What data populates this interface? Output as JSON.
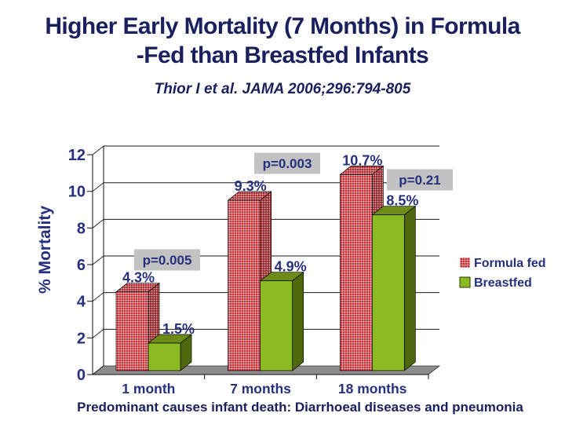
{
  "slide": {
    "title_line1": "Higher Early Mortality (7 Months) in Formula",
    "title_line2": "-Fed than Breastfed Infants",
    "subtitle": "Thior I et al.  JAMA 2006;296:794-805",
    "footer": "Predominant causes infant death: Diarrhoeal diseases and pneumonia"
  },
  "colors": {
    "navy_text": "#1a1f5e",
    "chart_text": "#27307e",
    "formula_red": "#c8232a",
    "breastfed_green": "#8cba22",
    "breastfed_green_top": "#6d8c17",
    "breastfed_green_side": "#4f680e",
    "floor_gray": "#8d8d8d",
    "pvalue_bg": "#c2c2c2"
  },
  "chart_data": {
    "type": "bar",
    "title": "",
    "categories": [
      "1 month",
      "7 months",
      "18 months"
    ],
    "series": [
      {
        "name": "Formula fed",
        "values": [
          4.3,
          9.3,
          10.7
        ],
        "labels": [
          "4.3%",
          "9.3%",
          "10.7%"
        ]
      },
      {
        "name": "Breastfed",
        "values": [
          1.5,
          4.9,
          8.5
        ],
        "labels": [
          "1.5%",
          "4.9%",
          "8.5%"
        ]
      }
    ],
    "p_values": [
      "p=0.005",
      "p=0.003",
      "p=0.21"
    ],
    "xlabel": "",
    "ylabel": "% Mortality",
    "yticks": [
      0,
      2,
      4,
      6,
      8,
      10,
      12
    ],
    "ylim": [
      0,
      12
    ],
    "grid": true,
    "legend_position": "right",
    "style": "3d-clustered-bar"
  }
}
